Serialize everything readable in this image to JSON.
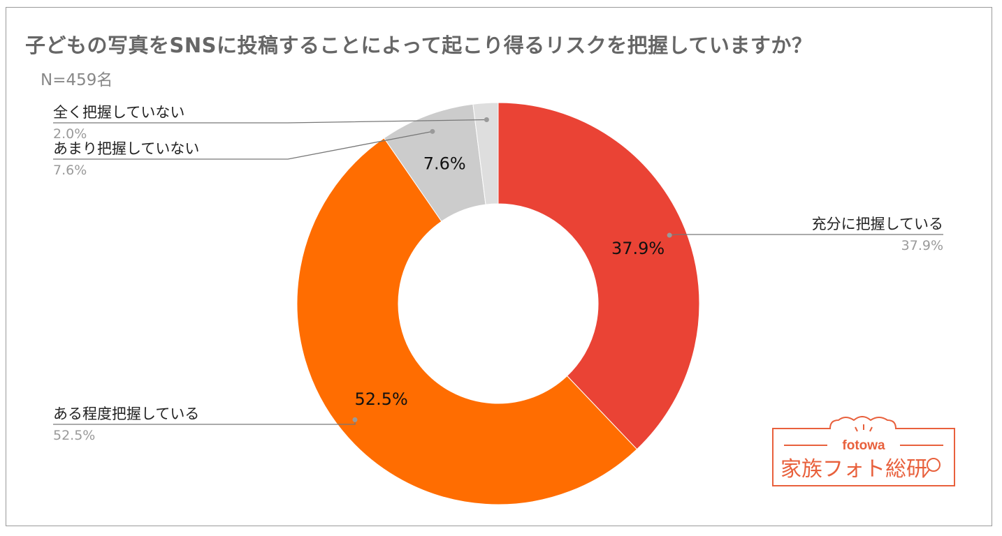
{
  "title": "子どもの写真をSNSに投稿することによって起こり得るリスクを把握していますか？",
  "subtitle": "N=459名",
  "chart_data": {
    "type": "pie",
    "donut": true,
    "slices": [
      {
        "label": "充分に把握している",
        "value": 37.9,
        "display": "37.9%",
        "color": "#EA4335"
      },
      {
        "label": "ある程度把握している",
        "value": 52.5,
        "display": "52.5%",
        "color": "#FF6D01"
      },
      {
        "label": "あまり把握していない",
        "value": 7.6,
        "display": "7.6%",
        "color": "#CCCCCC"
      },
      {
        "label": "全く把握していない",
        "value": 2.0,
        "display": "2.0%",
        "color": "#DEDEDE"
      }
    ]
  },
  "logo": {
    "brand": "fotowa",
    "name": "家族フォト総研",
    "color": "#E8603C"
  }
}
